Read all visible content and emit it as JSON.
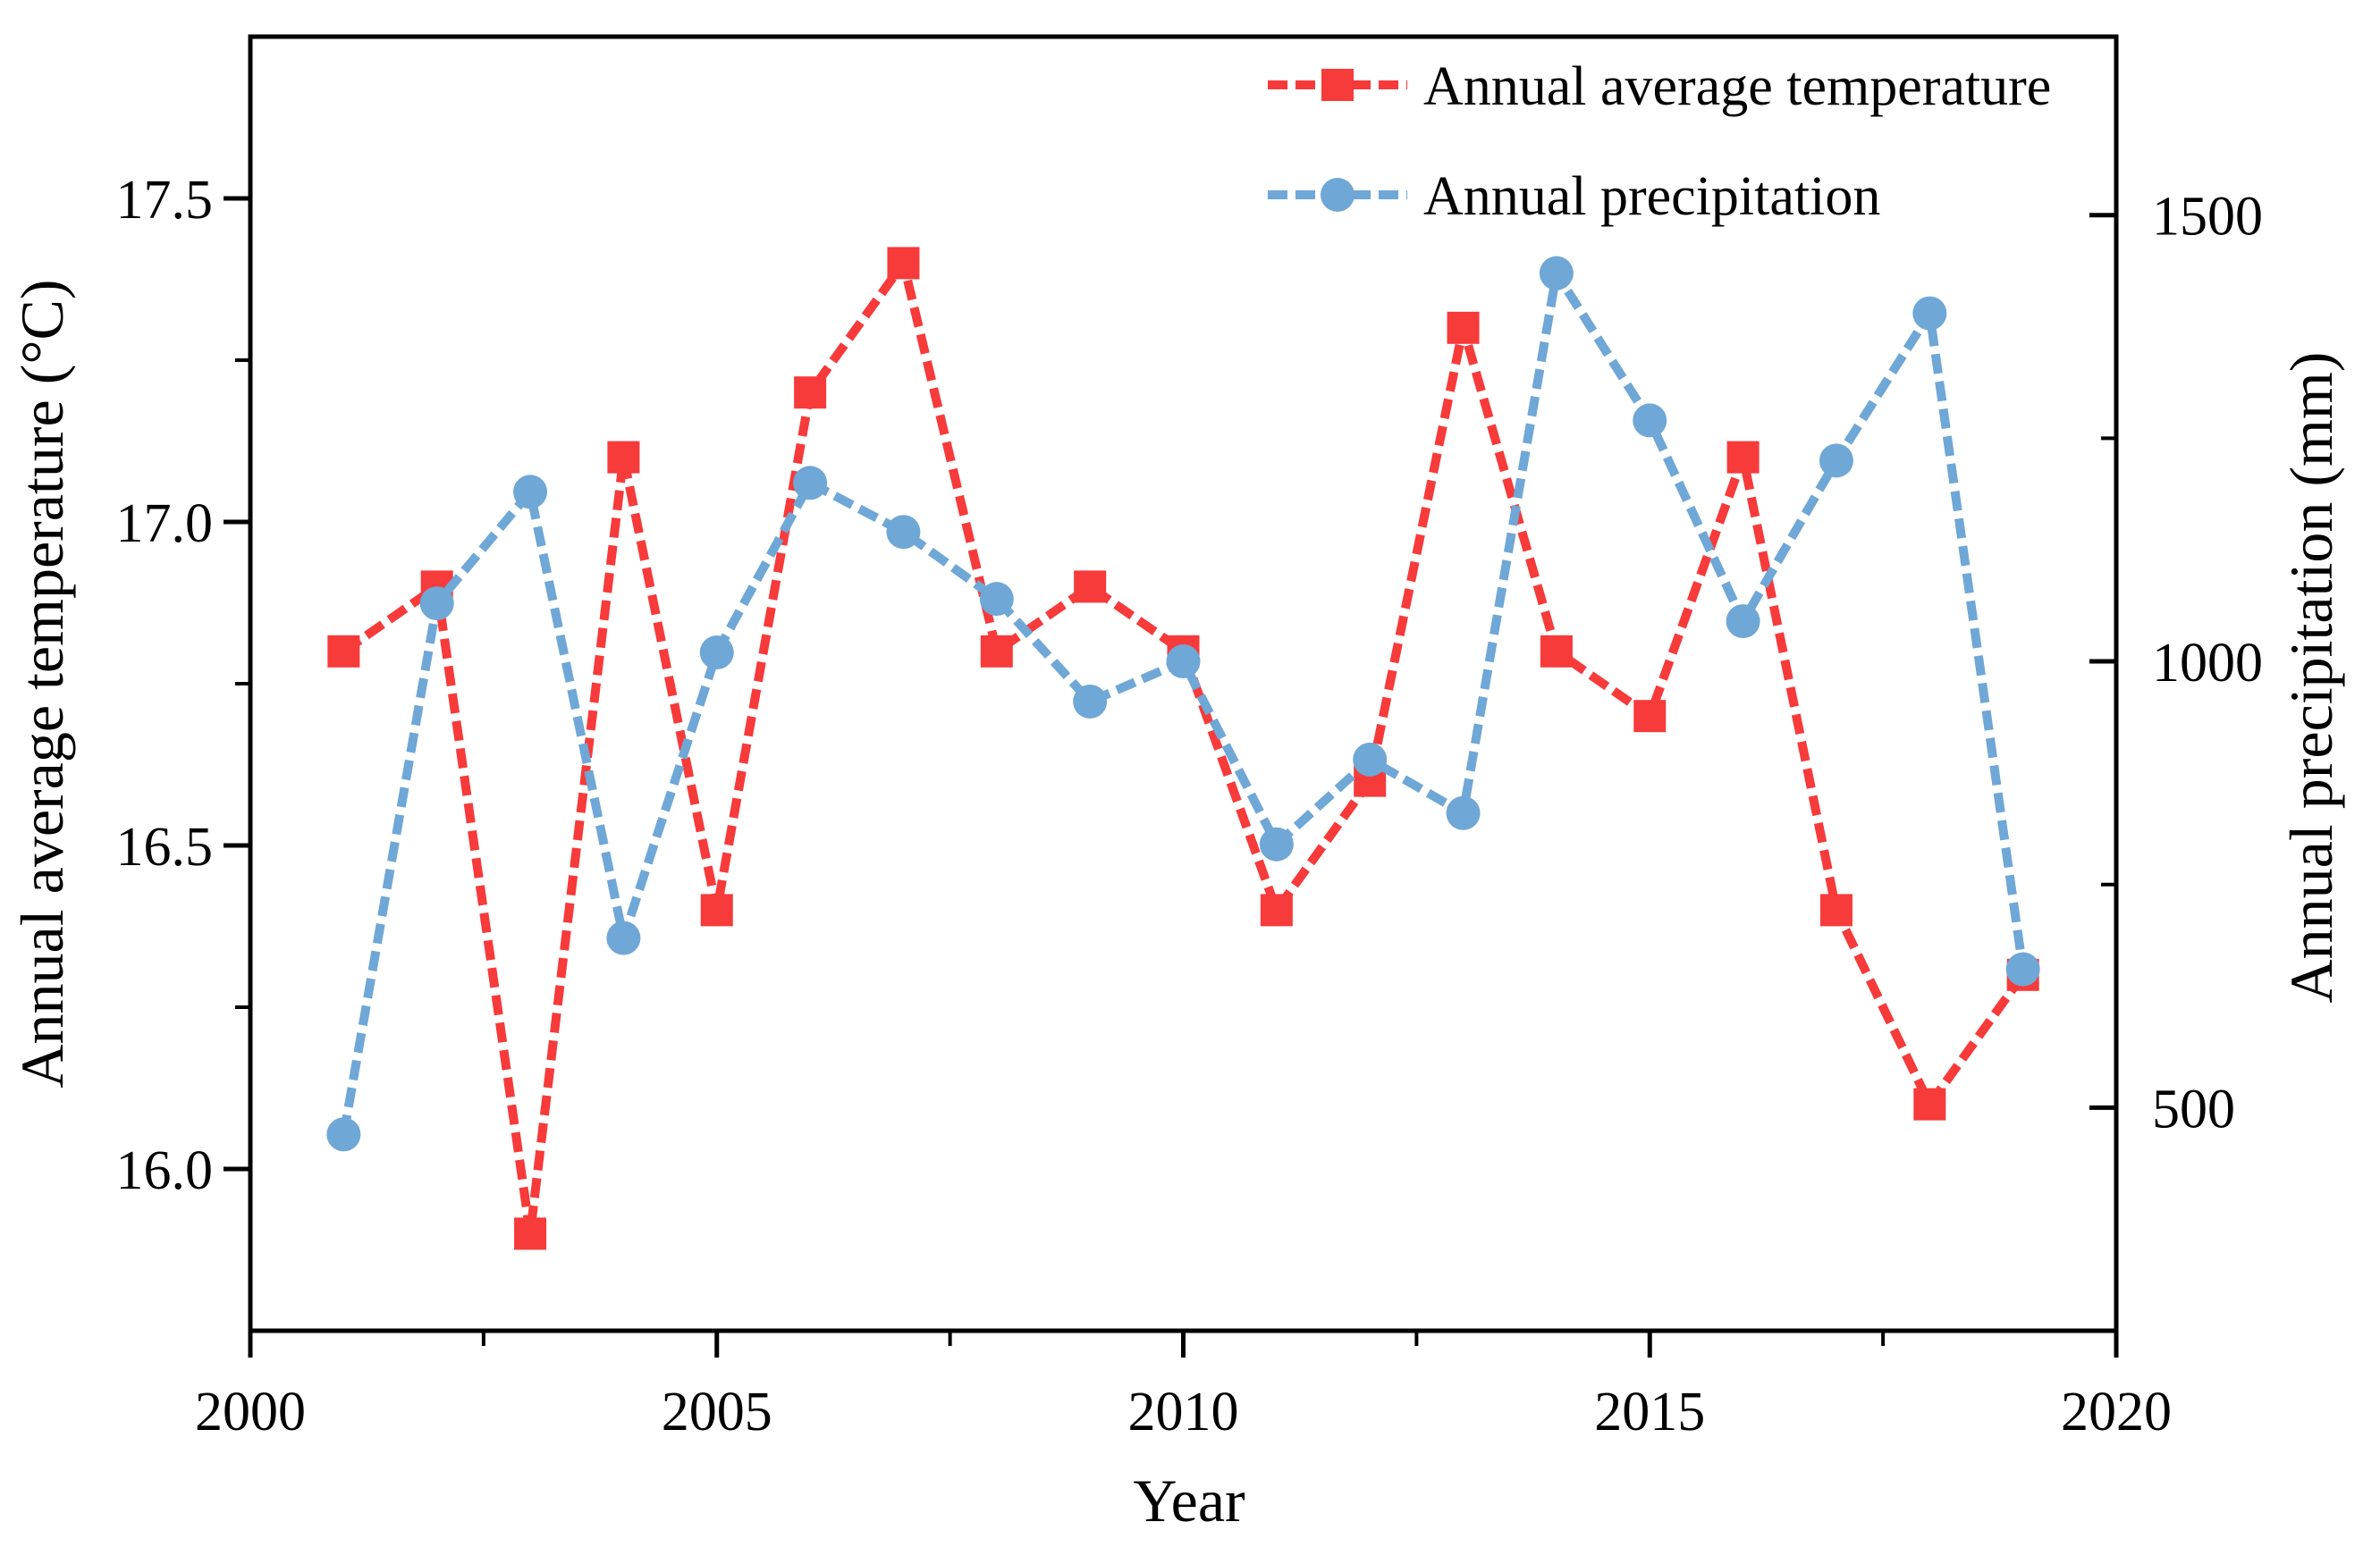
{
  "chart_data": {
    "type": "line",
    "title": "",
    "xlabel": "Year",
    "ylabel_left": "Annual average temperature (°C)",
    "ylabel_right": "Annual precipitation (mm)",
    "grid": false,
    "legend_position": "top-right-inside",
    "x": [
      2001,
      2002,
      2003,
      2004,
      2005,
      2006,
      2007,
      2008,
      2009,
      2010,
      2011,
      2012,
      2013,
      2014,
      2015,
      2016,
      2017,
      2018,
      2019
    ],
    "series": [
      {
        "name": "Annual average temperature",
        "axis": "left",
        "color": "#f73a3a",
        "marker": "square",
        "values": [
          16.8,
          16.9,
          15.9,
          17.1,
          16.4,
          17.2,
          17.4,
          16.8,
          16.9,
          16.8,
          16.4,
          16.6,
          17.3,
          16.8,
          16.7,
          17.1,
          16.4,
          16.1,
          16.3
        ]
      },
      {
        "name": "Annual precipitation",
        "axis": "right",
        "color": "#6fa7d6",
        "marker": "circle",
        "values": [
          470,
          1065,
          1190,
          690,
          1010,
          1200,
          1145,
          1070,
          955,
          1000,
          795,
          890,
          830,
          1435,
          1270,
          1045,
          1225,
          1390,
          655
        ]
      }
    ],
    "x_axis": {
      "min": 2000,
      "max": 2020,
      "major_ticks": [
        2000,
        2005,
        2010,
        2015,
        2020
      ],
      "major_tick_labels": [
        "2000",
        "2005",
        "2010",
        "2015",
        "2020"
      ],
      "minor_ticks": [
        2002.5,
        2007.5,
        2012.5,
        2017.5
      ]
    },
    "y_left": {
      "min": 15.75,
      "max": 17.75,
      "major_ticks": [
        16.0,
        16.5,
        17.0,
        17.5
      ],
      "major_tick_labels": [
        "16.0",
        "16.5",
        "17.0",
        "17.5"
      ],
      "minor_ticks": [
        16.25,
        16.75,
        17.25
      ]
    },
    "y_right": {
      "min": 250,
      "max": 1700,
      "major_ticks": [
        500,
        1000,
        1500
      ],
      "major_tick_labels": [
        "500",
        "1000",
        "1500"
      ],
      "minor_ticks": [
        750,
        1250
      ]
    }
  }
}
